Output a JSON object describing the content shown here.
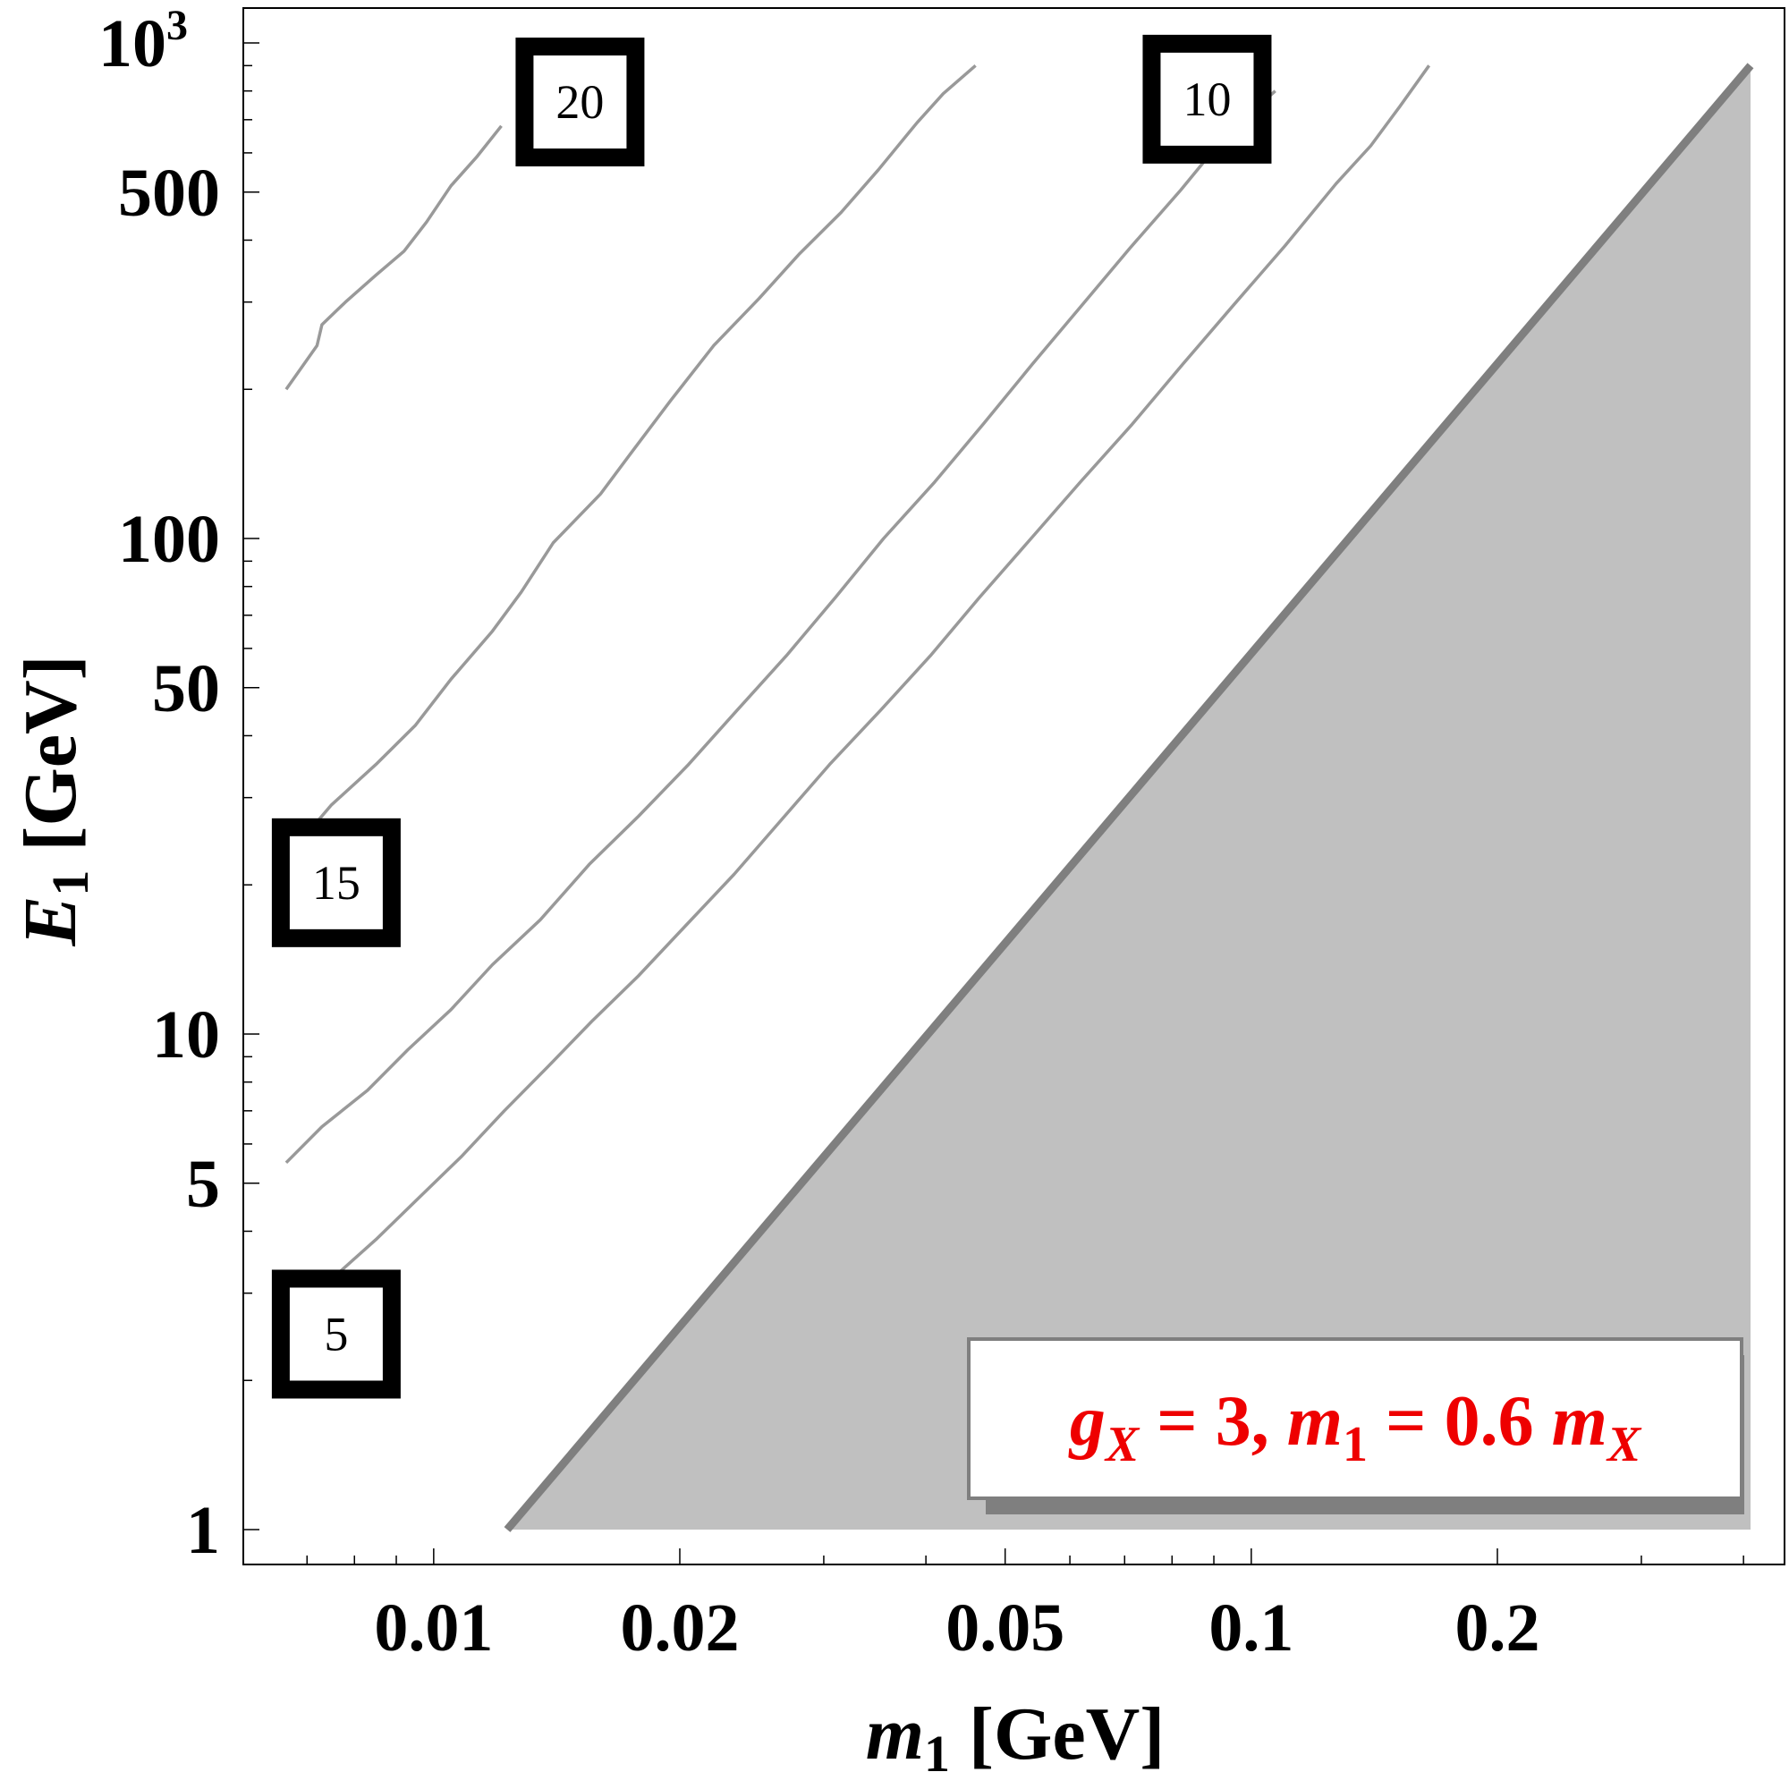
{
  "chart_data": {
    "type": "line",
    "x_scale": "log",
    "y_scale": "log",
    "xlim": [
      0.00647,
      0.408
    ],
    "ylim": [
      1,
      1000
    ],
    "xlabel_var": "m",
    "xlabel_sub": "1",
    "xlabel_unit": "[GeV]",
    "ylabel_var": "E",
    "ylabel_sub": "1",
    "ylabel_unit": "[GeV]",
    "x_ticks": [
      {
        "value": 0.01,
        "label": "0.01"
      },
      {
        "value": 0.02,
        "label": "0.02"
      },
      {
        "value": 0.05,
        "label": "0.05"
      },
      {
        "value": 0.1,
        "label": "0.1"
      },
      {
        "value": 0.2,
        "label": "0.2"
      }
    ],
    "y_ticks": [
      {
        "value": 1,
        "label": "1",
        "sup": ""
      },
      {
        "value": 5,
        "label": "5",
        "sup": ""
      },
      {
        "value": 10,
        "label": "10",
        "sup": ""
      },
      {
        "value": 50,
        "label": "50",
        "sup": ""
      },
      {
        "value": 100,
        "label": "100",
        "sup": ""
      },
      {
        "value": 500,
        "label": "500",
        "sup": ""
      },
      {
        "value": 1000,
        "label": "10",
        "sup": "3"
      }
    ],
    "contours": [
      {
        "level": "20",
        "points": [
          [
            0.0066,
            200
          ],
          [
            0.0072,
            245
          ],
          [
            0.0073,
            270
          ],
          [
            0.0078,
            300
          ],
          [
            0.0085,
            340
          ],
          [
            0.0092,
            380
          ],
          [
            0.0098,
            435
          ],
          [
            0.0105,
            515
          ],
          [
            0.0113,
            590
          ],
          [
            0.0121,
            680
          ]
        ]
      },
      {
        "level": "15",
        "points": [
          [
            0.0068,
            24
          ],
          [
            0.0075,
            29
          ],
          [
            0.0085,
            35
          ],
          [
            0.0095,
            42
          ],
          [
            0.0105,
            52
          ],
          [
            0.0118,
            65
          ],
          [
            0.0128,
            78
          ],
          [
            0.014,
            98
          ],
          [
            0.016,
            123
          ],
          [
            0.0175,
            150
          ],
          [
            0.0195,
            190
          ],
          [
            0.022,
            245
          ],
          [
            0.025,
            305
          ],
          [
            0.028,
            375
          ],
          [
            0.0315,
            455
          ],
          [
            0.035,
            555
          ],
          [
            0.039,
            690
          ],
          [
            0.042,
            790
          ],
          [
            0.046,
            900
          ]
        ]
      },
      {
        "level": "10",
        "points": [
          [
            0.0066,
            5.5
          ],
          [
            0.0073,
            6.5
          ],
          [
            0.0083,
            7.7
          ],
          [
            0.0093,
            9.3
          ],
          [
            0.0105,
            11.2
          ],
          [
            0.0118,
            13.8
          ],
          [
            0.0135,
            17.0
          ],
          [
            0.0155,
            22.0
          ],
          [
            0.0178,
            27.5
          ],
          [
            0.0205,
            35
          ],
          [
            0.0235,
            45
          ],
          [
            0.027,
            58
          ],
          [
            0.031,
            76
          ],
          [
            0.0355,
            100
          ],
          [
            0.041,
            130
          ],
          [
            0.047,
            170
          ],
          [
            0.054,
            225
          ],
          [
            0.062,
            295
          ],
          [
            0.071,
            385
          ],
          [
            0.082,
            505
          ],
          [
            0.093,
            650
          ],
          [
            0.107,
            800
          ]
        ]
      },
      {
        "level": "5",
        "points": [
          [
            0.0075,
            3.2
          ],
          [
            0.0085,
            3.85
          ],
          [
            0.0095,
            4.6
          ],
          [
            0.0108,
            5.65
          ],
          [
            0.0122,
            7.0
          ],
          [
            0.0138,
            8.6
          ],
          [
            0.0156,
            10.6
          ],
          [
            0.0178,
            13.1
          ],
          [
            0.0203,
            16.5
          ],
          [
            0.0233,
            21
          ],
          [
            0.0266,
            27
          ],
          [
            0.0305,
            35
          ],
          [
            0.0352,
            45
          ],
          [
            0.0405,
            58
          ],
          [
            0.0465,
            76
          ],
          [
            0.0535,
            99
          ],
          [
            0.0618,
            130
          ],
          [
            0.0715,
            170
          ],
          [
            0.0825,
            225
          ],
          [
            0.095,
            295
          ],
          [
            0.11,
            390
          ],
          [
            0.127,
            520
          ],
          [
            0.14,
            620
          ],
          [
            0.152,
            745
          ],
          [
            0.165,
            900
          ]
        ]
      }
    ],
    "contour_labels": [
      {
        "text": "20",
        "at": [
          0.0151,
          760
        ]
      },
      {
        "text": "15",
        "at": [
          0.0076,
          20.2
        ]
      },
      {
        "text": "10",
        "at": [
          0.0883,
          770
        ]
      },
      {
        "text": "5",
        "at": [
          0.0076,
          2.48
        ]
      }
    ],
    "excluded_region": {
      "boundary": [
        [
          0.0123,
          1
        ],
        [
          0.41,
          900
        ]
      ],
      "fill": "#c0c0c0",
      "edge": "#7f7f7f"
    },
    "annotation": {
      "parts": [
        {
          "t": "g",
          "i": true
        },
        {
          "t": "X",
          "i": true,
          "sub": true
        },
        {
          "t": " = 3, ",
          "i": false
        },
        {
          "t": "m",
          "i": true
        },
        {
          "t": "1",
          "i": false,
          "sub": true
        },
        {
          "t": " = 0.6 ",
          "i": false
        },
        {
          "t": "m",
          "i": true
        },
        {
          "t": "X",
          "i": true,
          "sub": true
        }
      ],
      "color": "#ee0000",
      "placement": "bottom-right"
    },
    "contour_color": "#999999",
    "grid": false
  }
}
